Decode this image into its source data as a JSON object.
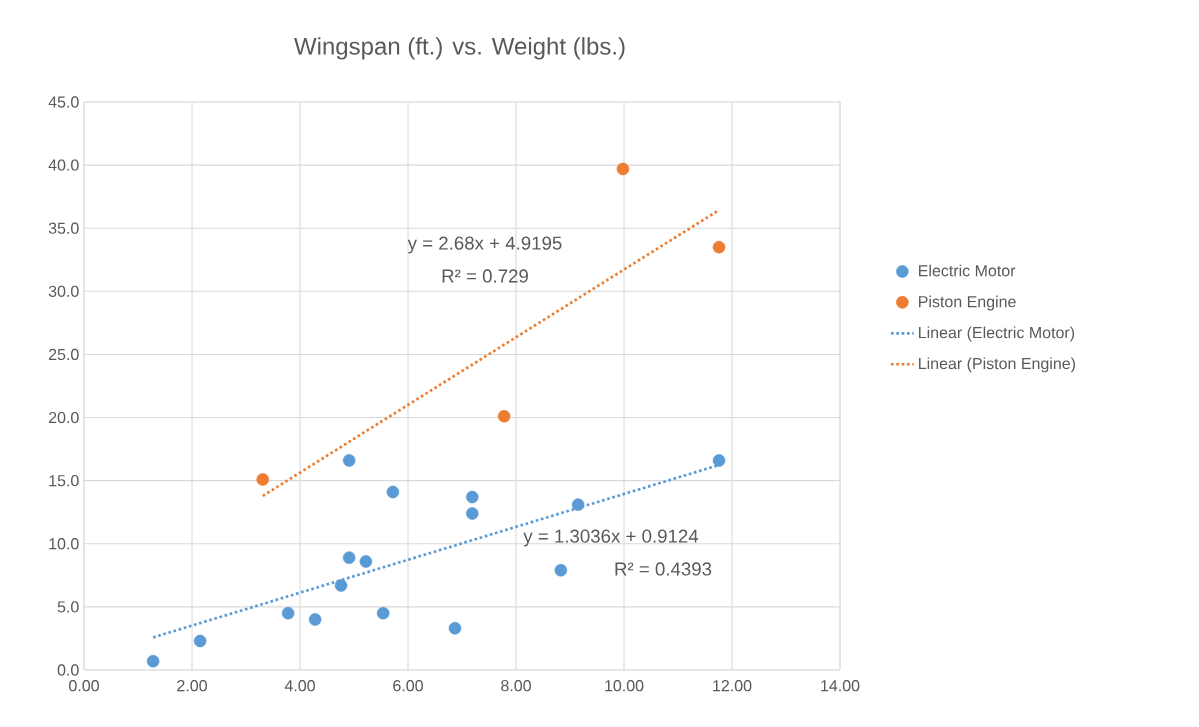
{
  "chart_data": {
    "type": "scatter",
    "title": "Wingspan (ft.) vs. Weight (lbs.)",
    "xlim": [
      0,
      14
    ],
    "ylim": [
      0,
      45
    ],
    "xticks": [
      {
        "value": 0,
        "label": "0.00"
      },
      {
        "value": 2,
        "label": "2.00"
      },
      {
        "value": 4,
        "label": "4.00"
      },
      {
        "value": 6,
        "label": "6.00"
      },
      {
        "value": 8,
        "label": "8.00"
      },
      {
        "value": 10,
        "label": "10.00"
      },
      {
        "value": 12,
        "label": "12.00"
      },
      {
        "value": 14,
        "label": "14.00"
      }
    ],
    "yticks": [
      {
        "value": 0,
        "label": "0.0"
      },
      {
        "value": 5,
        "label": "5.0"
      },
      {
        "value": 10,
        "label": "10.0"
      },
      {
        "value": 15,
        "label": "15.0"
      },
      {
        "value": 20,
        "label": "20.0"
      },
      {
        "value": 25,
        "label": "25.0"
      },
      {
        "value": 30,
        "label": "30.0"
      },
      {
        "value": 35,
        "label": "35.0"
      },
      {
        "value": 40,
        "label": "40.0"
      },
      {
        "value": 45,
        "label": "45.0"
      }
    ],
    "grid": true,
    "legend": "right",
    "series": [
      {
        "name": "Electric Motor",
        "marker": "circle",
        "color": "#5b9bd5",
        "x": [
          1.28,
          2.15,
          3.78,
          4.28,
          4.76,
          4.91,
          4.91,
          5.22,
          5.54,
          5.72,
          6.87,
          7.19,
          7.19,
          8.83,
          9.15,
          11.76
        ],
        "values": [
          0.7,
          2.3,
          4.5,
          4.0,
          6.7,
          8.9,
          16.6,
          8.6,
          4.5,
          14.1,
          3.3,
          13.7,
          12.4,
          7.9,
          13.1,
          16.6
        ]
      },
      {
        "name": "Piston Engine",
        "marker": "circle",
        "color": "#ed7d31",
        "x": [
          3.31,
          7.78,
          9.98,
          11.76
        ],
        "values": [
          15.1,
          20.1,
          39.7,
          33.5
        ]
      },
      {
        "name": "Linear (Electric Motor)",
        "type": "line",
        "line_style": "dotted",
        "marker": "none",
        "color": "#5b9bd5",
        "x": [
          1.28,
          11.76
        ],
        "values": [
          2.58,
          16.24
        ]
      },
      {
        "name": "Linear (Piston Engine)",
        "type": "line",
        "line_style": "dotted",
        "marker": "none",
        "color": "#ed7d31",
        "x": [
          3.31,
          11.76
        ],
        "values": [
          13.79,
          36.44
        ]
      }
    ],
    "annotations": [
      "y = 2.68x + 4.9195",
      "R² = 0.729",
      "y = 1.3036x + 0.9124",
      "R² = 0.4393"
    ]
  }
}
